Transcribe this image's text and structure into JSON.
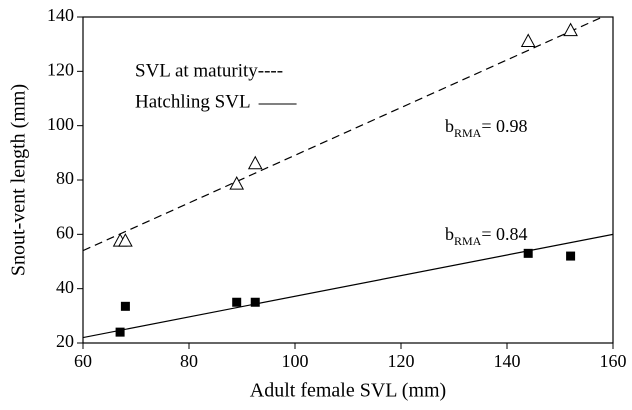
{
  "chart_data": {
    "type": "scatter",
    "xlabel": "Adult female SVL (mm)",
    "ylabel": "Snout-vent length (mm)",
    "xlim": [
      60,
      160
    ],
    "xticks": [
      60,
      80,
      100,
      120,
      140,
      160
    ],
    "ylim": [
      20,
      140
    ],
    "yticks": [
      20,
      40,
      60,
      80,
      100,
      120,
      140
    ],
    "series": [
      {
        "name": "SVL at maturity----",
        "marker": "open-triangle",
        "color": "#000000",
        "line_style": "dashed",
        "x": [
          67,
          68,
          89,
          92.5,
          144,
          152
        ],
        "values": [
          57.5,
          57.5,
          78.5,
          86,
          131,
          135
        ],
        "fit": {
          "x": [
            60,
            158
          ],
          "y": [
            54,
            140
          ]
        }
      },
      {
        "name": "Hatchling SVL",
        "marker": "filled-square",
        "color": "#000000",
        "line_style": "solid",
        "x": [
          67,
          68,
          89,
          92.5,
          144,
          152
        ],
        "values": [
          24,
          33.5,
          35,
          35,
          53,
          52
        ],
        "fit": {
          "x": [
            60,
            160
          ],
          "y": [
            22,
            60
          ]
        }
      }
    ],
    "annotations": [
      {
        "text": "b",
        "subscript": "RMA",
        "suffix": "= 0.98"
      },
      {
        "text": "b",
        "subscript": "RMA",
        "suffix": "= 0.84"
      }
    ]
  }
}
